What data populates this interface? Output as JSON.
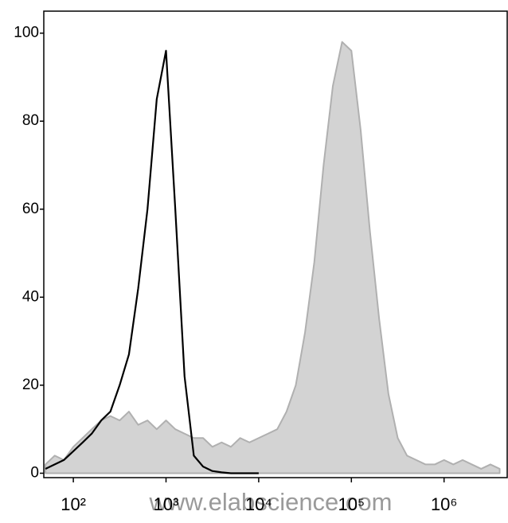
{
  "chart_data": {
    "type": "histogram-overlay",
    "x": [
      50,
      63,
      79,
      100,
      126,
      158,
      200,
      251,
      316,
      398,
      501,
      631,
      794,
      1000,
      1259,
      1585,
      1995,
      2512,
      3162,
      3981,
      5012,
      6310,
      7943,
      10000,
      12589,
      15849,
      19953,
      25119,
      31623,
      39811,
      50119,
      63096,
      79433,
      100000,
      125893,
      158489,
      199526,
      251189,
      316228,
      398107,
      501187,
      630957,
      794328,
      1000000,
      1258925,
      1584893,
      1995262,
      2511886,
      3162278,
      3981072
    ],
    "series": [
      {
        "style": "area",
        "color": "#b0b0b0",
        "fill": "#d3d3d3",
        "values": [
          2,
          4,
          3,
          6,
          8,
          10,
          12,
          13,
          12,
          14,
          11,
          12,
          10,
          12,
          10,
          9,
          8,
          8,
          6,
          7,
          6,
          8,
          7,
          8,
          9,
          10,
          14,
          20,
          32,
          48,
          70,
          88,
          98,
          96,
          78,
          55,
          35,
          18,
          8,
          4,
          3,
          2,
          2,
          3,
          2,
          3,
          2,
          1,
          2,
          1
        ]
      },
      {
        "style": "line",
        "color": "#000000",
        "values": [
          1,
          2,
          3,
          5,
          7,
          9,
          12,
          14,
          20,
          27,
          42,
          60,
          85,
          96,
          60,
          22,
          4,
          1.5,
          0.5,
          0.2,
          0,
          0,
          0,
          0,
          null,
          null,
          null,
          null,
          null,
          null,
          null,
          null,
          null,
          null,
          null,
          null,
          null,
          null,
          null,
          null,
          null,
          null,
          null,
          null,
          null,
          null,
          null,
          null,
          null,
          null
        ]
      }
    ],
    "xscale": "log",
    "xlim": [
      48,
      4800000
    ],
    "xticks": [
      {
        "value": 100,
        "label": "10²"
      },
      {
        "value": 1000,
        "label": "10³"
      },
      {
        "value": 10000,
        "label": "10⁴"
      },
      {
        "value": 100000,
        "label": "10⁵"
      },
      {
        "value": 1000000,
        "label": "10⁶"
      }
    ],
    "ylim": [
      -1,
      105
    ],
    "yticks": [
      0,
      20,
      40,
      60,
      80,
      100
    ],
    "watermark": "www.elabscience.com"
  }
}
